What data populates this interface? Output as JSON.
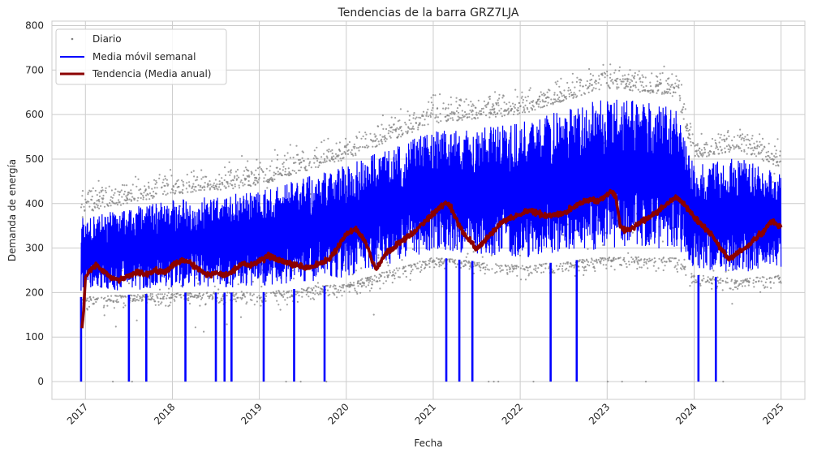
{
  "chart_data": {
    "type": "line",
    "title": "Tendencias de la barra GRZ7LJA",
    "xlabel": "Fecha",
    "ylabel": "Demanda de energía",
    "x_ticks": [
      "2017",
      "2018",
      "2019",
      "2020",
      "2021",
      "2022",
      "2023",
      "2024",
      "2025"
    ],
    "y_ticks": [
      "0",
      "100",
      "200",
      "300",
      "400",
      "500",
      "600",
      "700",
      "800"
    ],
    "xlim": [
      "2016-08-13",
      "2025-04-11"
    ],
    "ylim": [
      -40,
      810
    ],
    "grid": true,
    "legend_position": "top-left",
    "series": [
      {
        "name": "Diario",
        "style": "scatter",
        "color": "#808080",
        "approx_level": [
          [
            2016.95,
            300
          ],
          [
            2017.5,
            260
          ],
          [
            2018.0,
            270
          ],
          [
            2018.5,
            265
          ],
          [
            2019.0,
            290
          ],
          [
            2019.5,
            285
          ],
          [
            2020.0,
            340
          ],
          [
            2020.3,
            270
          ],
          [
            2020.5,
            320
          ],
          [
            2021.0,
            410
          ],
          [
            2021.5,
            330
          ],
          [
            2022.0,
            395
          ],
          [
            2022.5,
            400
          ],
          [
            2023.0,
            440
          ],
          [
            2023.2,
            360
          ],
          [
            2023.5,
            400
          ],
          [
            2023.8,
            430
          ],
          [
            2024.0,
            350
          ],
          [
            2024.4,
            290
          ],
          [
            2024.7,
            350
          ],
          [
            2025.0,
            360
          ]
        ]
      },
      {
        "name": "Media móvil semanal",
        "style": "line",
        "color": "#0000ff",
        "approx_range": [
          [
            2017.0,
            190,
            380
          ],
          [
            2018.0,
            200,
            420
          ],
          [
            2019.0,
            200,
            440
          ],
          [
            2020.0,
            220,
            500
          ],
          [
            2021.0,
            280,
            580
          ],
          [
            2022.0,
            260,
            600
          ],
          [
            2023.0,
            280,
            660
          ],
          [
            2023.8,
            280,
            640
          ],
          [
            2024.0,
            240,
            500
          ],
          [
            2024.5,
            230,
            520
          ],
          [
            2025.0,
            240,
            480
          ]
        ],
        "dips_to_zero": [
          2016.95,
          2017.5,
          2017.7,
          2018.15,
          2018.5,
          2018.6,
          2018.68,
          2019.05,
          2019.4,
          2019.75,
          2021.15,
          2021.3,
          2021.45,
          2022.35,
          2022.65,
          2024.05,
          2024.25
        ]
      },
      {
        "name": "Tendencia (Media anual)",
        "style": "line",
        "color": "#8b0000",
        "values": [
          [
            2016.96,
            120
          ],
          [
            2016.98,
            160
          ],
          [
            2017.0,
            235
          ],
          [
            2017.05,
            248
          ],
          [
            2017.12,
            262
          ],
          [
            2017.2,
            250
          ],
          [
            2017.3,
            232
          ],
          [
            2017.4,
            228
          ],
          [
            2017.5,
            238
          ],
          [
            2017.6,
            246
          ],
          [
            2017.7,
            240
          ],
          [
            2017.8,
            250
          ],
          [
            2017.9,
            245
          ],
          [
            2018.0,
            260
          ],
          [
            2018.1,
            272
          ],
          [
            2018.2,
            268
          ],
          [
            2018.3,
            252
          ],
          [
            2018.4,
            240
          ],
          [
            2018.5,
            245
          ],
          [
            2018.6,
            238
          ],
          [
            2018.7,
            248
          ],
          [
            2018.8,
            265
          ],
          [
            2018.9,
            262
          ],
          [
            2019.0,
            270
          ],
          [
            2019.1,
            282
          ],
          [
            2019.2,
            276
          ],
          [
            2019.3,
            268
          ],
          [
            2019.4,
            262
          ],
          [
            2019.5,
            258
          ],
          [
            2019.6,
            256
          ],
          [
            2019.7,
            265
          ],
          [
            2019.8,
            275
          ],
          [
            2019.9,
            300
          ],
          [
            2020.0,
            330
          ],
          [
            2020.1,
            345
          ],
          [
            2020.2,
            320
          ],
          [
            2020.25,
            300
          ],
          [
            2020.3,
            268
          ],
          [
            2020.35,
            252
          ],
          [
            2020.45,
            288
          ],
          [
            2020.55,
            300
          ],
          [
            2020.65,
            318
          ],
          [
            2020.75,
            330
          ],
          [
            2020.85,
            350
          ],
          [
            2020.95,
            368
          ],
          [
            2021.05,
            388
          ],
          [
            2021.15,
            402
          ],
          [
            2021.2,
            392
          ],
          [
            2021.3,
            350
          ],
          [
            2021.4,
            320
          ],
          [
            2021.5,
            298
          ],
          [
            2021.6,
            318
          ],
          [
            2021.7,
            340
          ],
          [
            2021.8,
            360
          ],
          [
            2021.9,
            368
          ],
          [
            2022.0,
            375
          ],
          [
            2022.1,
            385
          ],
          [
            2022.2,
            378
          ],
          [
            2022.3,
            372
          ],
          [
            2022.4,
            375
          ],
          [
            2022.5,
            380
          ],
          [
            2022.6,
            390
          ],
          [
            2022.7,
            402
          ],
          [
            2022.8,
            410
          ],
          [
            2022.9,
            405
          ],
          [
            2023.0,
            420
          ],
          [
            2023.05,
            428
          ],
          [
            2023.1,
            415
          ],
          [
            2023.15,
            350
          ],
          [
            2023.2,
            340
          ],
          [
            2023.3,
            345
          ],
          [
            2023.4,
            360
          ],
          [
            2023.5,
            372
          ],
          [
            2023.6,
            385
          ],
          [
            2023.7,
            400
          ],
          [
            2023.8,
            415
          ],
          [
            2023.9,
            395
          ],
          [
            2024.0,
            370
          ],
          [
            2024.1,
            350
          ],
          [
            2024.2,
            330
          ],
          [
            2024.3,
            300
          ],
          [
            2024.4,
            275
          ],
          [
            2024.5,
            290
          ],
          [
            2024.6,
            300
          ],
          [
            2024.7,
            320
          ],
          [
            2024.8,
            338
          ],
          [
            2024.9,
            362
          ],
          [
            2025.0,
            345
          ]
        ]
      }
    ]
  }
}
